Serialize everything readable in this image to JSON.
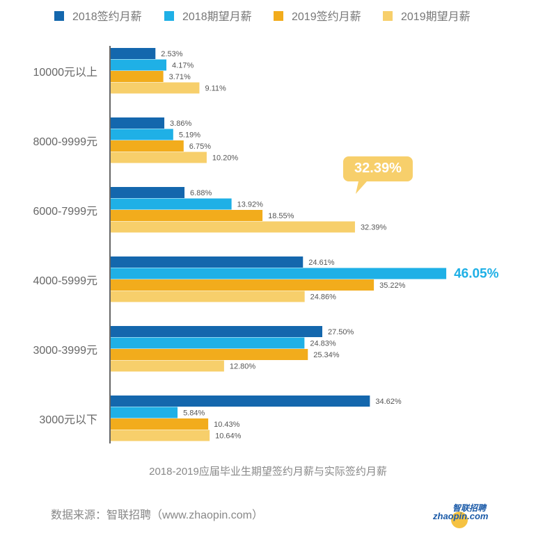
{
  "chart_data": {
    "type": "bar",
    "orientation": "horizontal",
    "title": "2018-2019应届毕业生期望签约月薪与实际签约月薪",
    "categories": [
      "10000元以上",
      "8000-9999元",
      "6000-7999元",
      "4000-5999元",
      "3000-3999元",
      "3000元以下"
    ],
    "series": [
      {
        "name": "2018签约月薪",
        "color": "#1467ad",
        "values": [
          2.53,
          3.86,
          6.88,
          24.61,
          27.5,
          34.62
        ]
      },
      {
        "name": "2018期望月薪",
        "color": "#1fb0e6",
        "values": [
          4.17,
          5.19,
          13.92,
          46.05,
          24.83,
          5.84
        ]
      },
      {
        "name": "2019签约月薪",
        "color": "#f2ac1c",
        "values": [
          3.71,
          6.75,
          18.55,
          35.22,
          25.34,
          10.43
        ]
      },
      {
        "name": "2019期望月薪",
        "color": "#f7cf6b",
        "values": [
          9.11,
          10.2,
          32.39,
          24.86,
          12.8,
          10.64
        ]
      }
    ],
    "value_suffix": "%",
    "legend": "top",
    "grid": false,
    "highlights": [
      {
        "series": 1,
        "category": 3,
        "label": "46.05%",
        "color": "#1fb0e6"
      },
      {
        "series": 3,
        "category": 2,
        "label": "32.39%",
        "color": "#f7cf6b"
      }
    ]
  },
  "footer": {
    "source": "数据来源：智联招聘（www.zhaopin.com）",
    "logo_text_cn": "智联招聘",
    "logo_text_en": "zhaopin.com"
  }
}
